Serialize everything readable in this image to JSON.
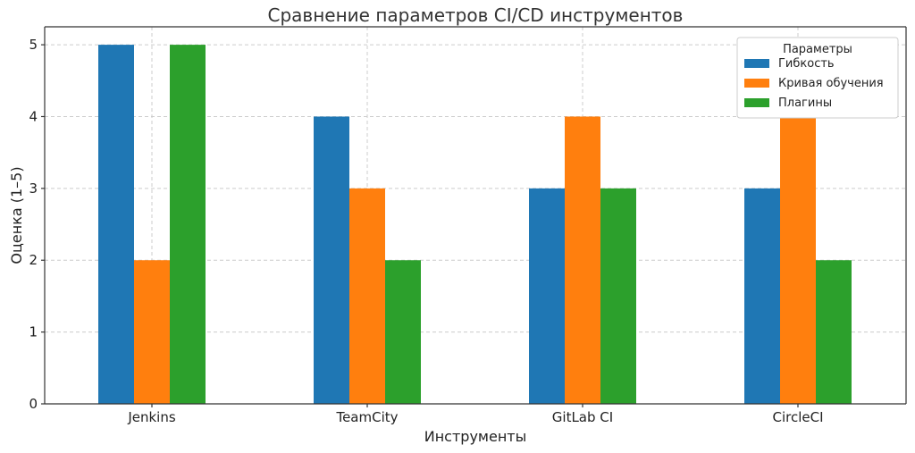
{
  "chart_data": {
    "type": "bar",
    "title": "Сравнение параметров CI/CD инструментов",
    "xlabel": "Инструменты",
    "ylabel": "Оценка (1–5)",
    "categories": [
      "Jenkins",
      "TeamCity",
      "GitLab CI",
      "CircleCI"
    ],
    "ylim": [
      0,
      5.25
    ],
    "yticks": [
      0,
      1,
      2,
      3,
      4,
      5
    ],
    "grid": true,
    "legend": {
      "title": "Параметры",
      "placement": "top-right"
    },
    "series": [
      {
        "name": "Гибкость",
        "color": "#1f77b4",
        "values": [
          5,
          4,
          3,
          3
        ]
      },
      {
        "name": "Кривая обучения",
        "color": "#ff7f0e",
        "values": [
          2,
          3,
          4,
          4
        ]
      },
      {
        "name": "Плагины",
        "color": "#2ca02c",
        "values": [
          5,
          2,
          3,
          2
        ]
      }
    ]
  }
}
